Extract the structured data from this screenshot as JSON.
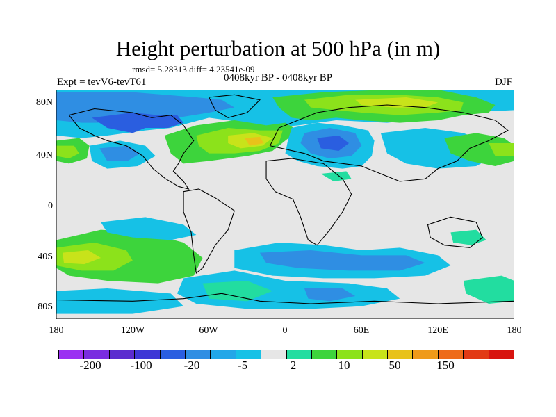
{
  "title": "Height perturbation at 500 hPa (in m)",
  "stats": "rmsd= 5.28313 diff= 4.23541e-09",
  "expt": "Expt = tevV6-tevT61",
  "period": "0408kyr BP - 0408kyr BP",
  "season": "DJF",
  "lat_labels": [
    "80N",
    "40N",
    "0",
    "40S",
    "80S"
  ],
  "lon_labels": [
    "180",
    "120W",
    "60W",
    "0",
    "60E",
    "120E",
    "180"
  ],
  "colorbar": {
    "colors": [
      "#9b30f2",
      "#7a2de0",
      "#5b2ccf",
      "#3e37d6",
      "#2a5ee0",
      "#2f8ee3",
      "#22a7e8",
      "#16c1e6",
      "#e6e6e6",
      "#22dda0",
      "#3dd43c",
      "#8ce21b",
      "#c8e31a",
      "#e8c21a",
      "#ef9a1a",
      "#ee6b1a",
      "#e23a15",
      "#d8140f"
    ],
    "labels": [
      "-200",
      "-100",
      "-20",
      "-5",
      "2",
      "10",
      "50",
      "150"
    ]
  }
}
